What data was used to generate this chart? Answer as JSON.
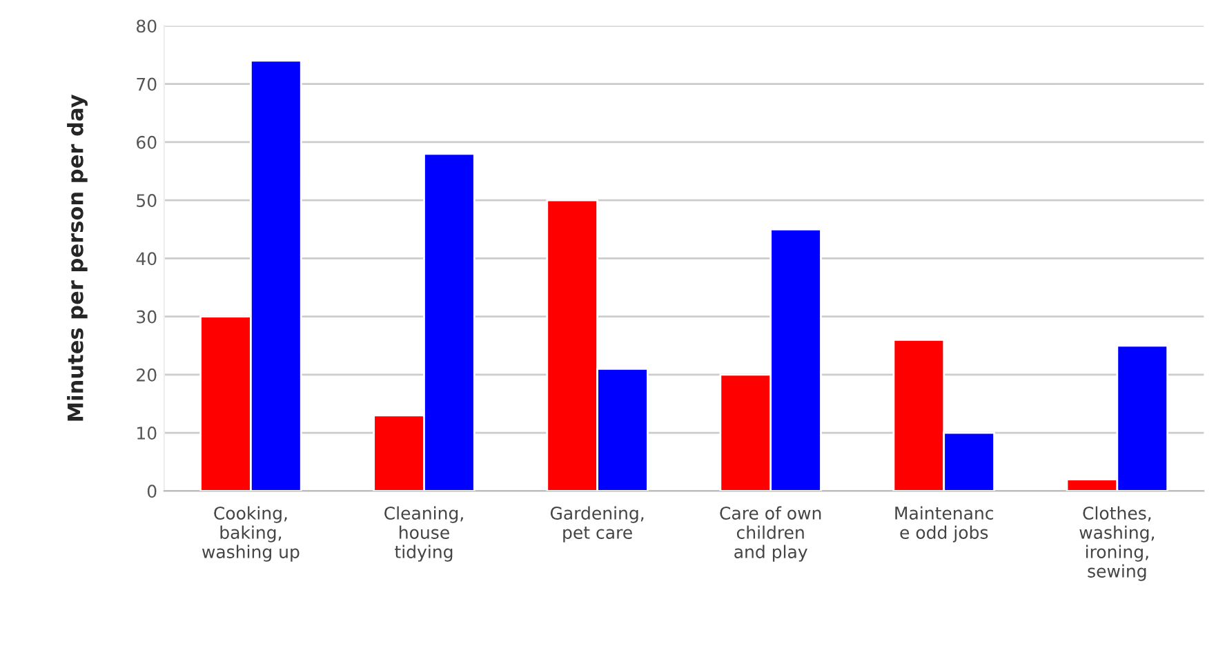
{
  "chart_data": {
    "type": "bar",
    "ylabel": "Minutes per person per day",
    "categories": [
      "Cooking,\nbaking,\nwashing up",
      "Cleaning,\nhouse\ntidying",
      "Gardening,\npet care",
      "Care of own\nchildren\nand play",
      "Maintenanc\ne odd jobs",
      "Clothes,\nwashing,\nironing,\nsewing"
    ],
    "series": [
      {
        "color": "#ff0000",
        "values": [
          30,
          13,
          50,
          20,
          26,
          2
        ]
      },
      {
        "color": "#0000ff",
        "values": [
          74,
          58,
          21,
          45,
          10,
          25
        ]
      }
    ],
    "ylim": [
      0,
      80
    ],
    "yticks": [
      0,
      10,
      20,
      30,
      40,
      50,
      60,
      70,
      80
    ],
    "grid": "y",
    "legend": false
  }
}
